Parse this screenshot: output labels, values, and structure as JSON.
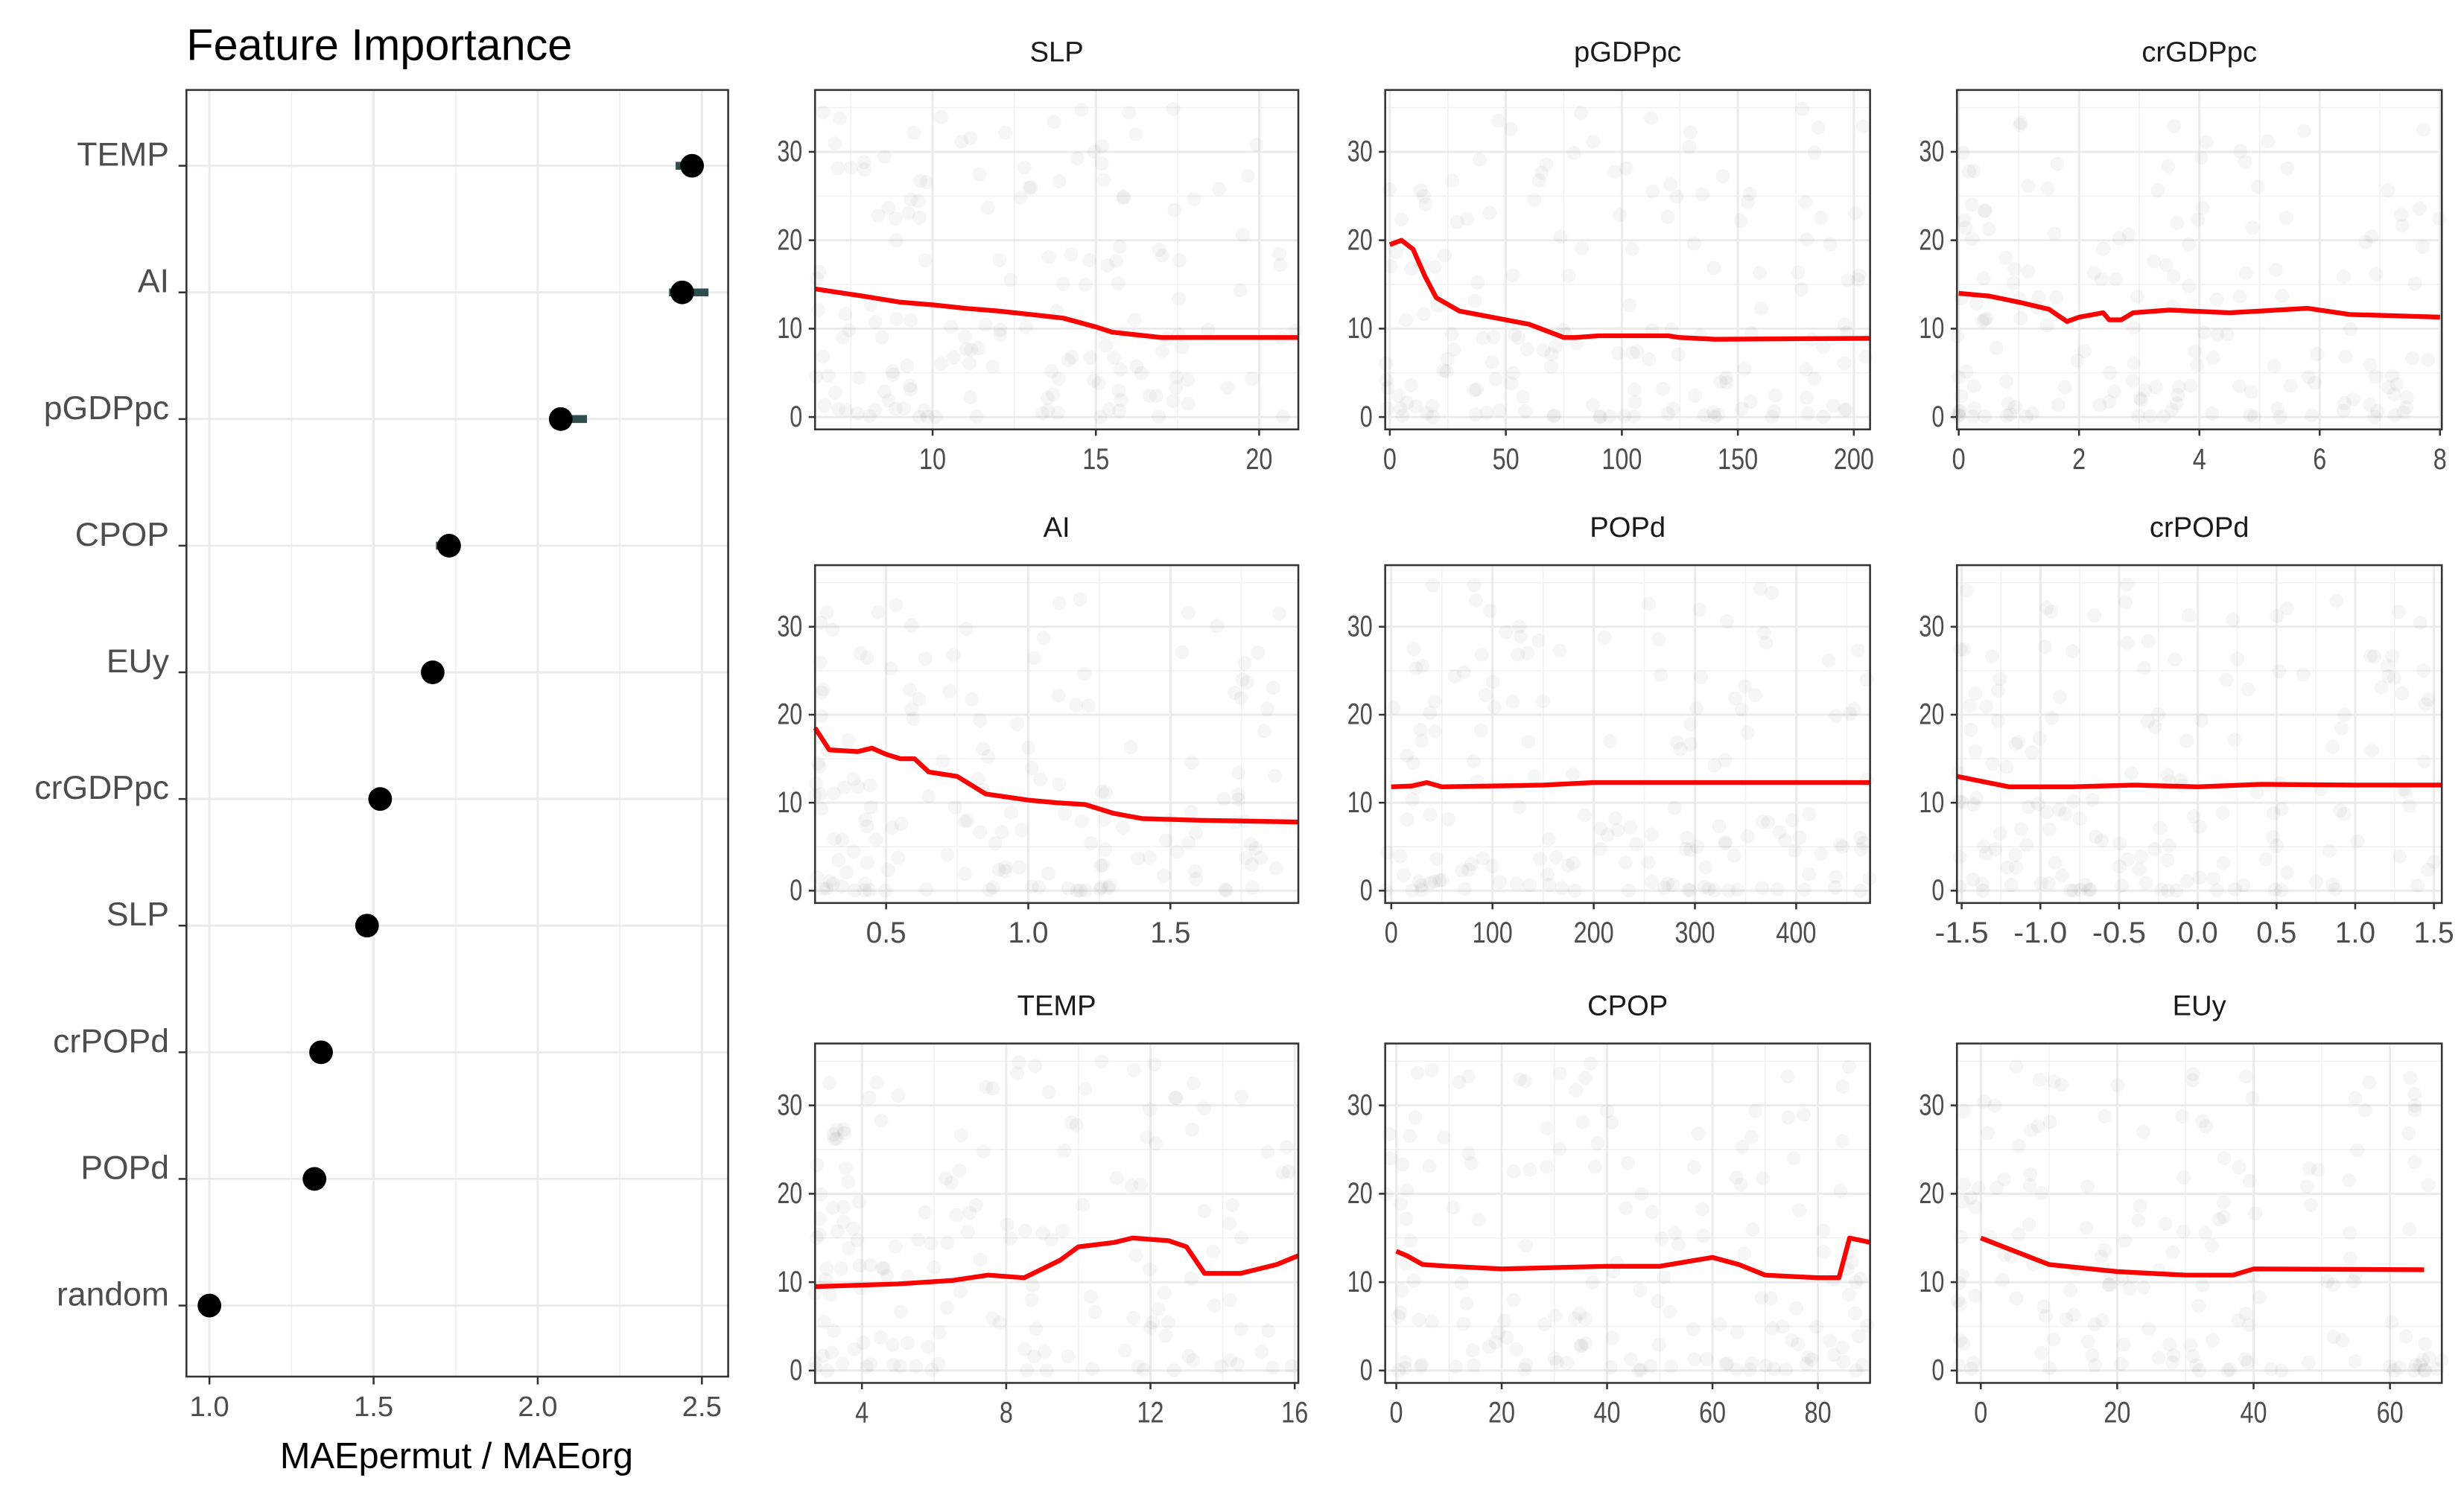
{
  "chart_data": [
    {
      "type": "dot",
      "title": "Feature Importance",
      "xlabel": "MAEpermut / MAEorg",
      "ylabel": "",
      "xlim": [
        0.93,
        2.58
      ],
      "xticks": [
        "1.0",
        "1.5",
        "2.0",
        "2.5"
      ],
      "xtick_values": [
        1.0,
        1.5,
        2.0,
        2.5
      ],
      "grid": true,
      "categories": [
        "TEMP",
        "AI",
        "pGDPpc",
        "CPOP",
        "EUy",
        "crGDPpc",
        "SLP",
        "crPOPd",
        "POPd",
        "random"
      ],
      "values": [
        2.47,
        2.44,
        2.07,
        1.73,
        1.68,
        1.52,
        1.48,
        1.34,
        1.32,
        1.0
      ],
      "lower": [
        2.42,
        2.4,
        2.05,
        1.69,
        1.67,
        1.51,
        1.47,
        1.33,
        1.31,
        1.0
      ],
      "upper": [
        2.48,
        2.52,
        2.15,
        1.75,
        1.69,
        1.53,
        1.49,
        1.35,
        1.33,
        1.0
      ],
      "colors": {
        "point": "#000000",
        "errorbar": "#2f4f4f"
      }
    },
    {
      "type": "line",
      "subtype": "partial-dependence-grid",
      "ylim": [
        -1.4,
        37
      ],
      "yticks": [
        "0",
        "10",
        "20",
        "30"
      ],
      "ytick_values": [
        0,
        10,
        20,
        30
      ],
      "colors": {
        "line": "#ff0000",
        "points": "#000000"
      },
      "panels": [
        {
          "title": "SLP",
          "xlim": [
            6.4,
            21.2
          ],
          "xticks": [
            10,
            15,
            20
          ],
          "x": [
            6.4,
            8,
            9,
            10,
            11,
            12,
            13,
            14,
            15,
            15.5,
            17,
            21.2
          ],
          "y": [
            14.5,
            13.6,
            13,
            12.7,
            12.3,
            12,
            11.6,
            11.2,
            10.2,
            9.6,
            9,
            9
          ]
        },
        {
          "title": "pGDPpc",
          "xlim": [
            -2,
            207
          ],
          "xticks": [
            0,
            50,
            100,
            150,
            200
          ],
          "x": [
            0,
            5,
            10,
            15,
            20,
            30,
            50,
            60,
            70,
            75,
            80,
            90,
            120,
            125,
            140,
            207
          ],
          "y": [
            19.5,
            20,
            19,
            16,
            13.5,
            12,
            11,
            10.5,
            9.5,
            9,
            9,
            9.2,
            9.2,
            9,
            8.8,
            8.9
          ]
        },
        {
          "title": "crGDPpc",
          "xlim": [
            -0.03,
            8.03
          ],
          "xticks": [
            0,
            2,
            4,
            6,
            8
          ],
          "x": [
            0,
            0.5,
            1,
            1.5,
            1.8,
            2,
            2.4,
            2.5,
            2.7,
            2.9,
            3.5,
            4.5,
            5.8,
            6.5,
            8
          ],
          "y": [
            14,
            13.7,
            13,
            12.2,
            10.8,
            11.3,
            11.8,
            11,
            11,
            11.8,
            12.1,
            11.8,
            12.3,
            11.6,
            11.3
          ]
        },
        {
          "title": "AI",
          "xlim": [
            0.25,
            1.95
          ],
          "xticks": [
            0.5,
            1.0,
            1.5
          ],
          "xtick_labels": [
            "0.5",
            "1.0",
            "1.5"
          ],
          "x": [
            0.25,
            0.3,
            0.4,
            0.45,
            0.5,
            0.55,
            0.6,
            0.65,
            0.75,
            0.85,
            1.0,
            1.1,
            1.2,
            1.3,
            1.4,
            1.6,
            1.95
          ],
          "y": [
            18.5,
            16,
            15.8,
            16.2,
            15.5,
            15,
            15,
            13.5,
            13,
            11,
            10.3,
            10,
            9.8,
            8.8,
            8.2,
            8,
            7.8
          ]
        },
        {
          "title": "POPd",
          "xlim": [
            -6,
            473
          ],
          "xticks": [
            0,
            100,
            200,
            300,
            400
          ],
          "x": [
            0,
            20,
            35,
            50,
            100,
            150,
            200,
            473
          ],
          "y": [
            11.8,
            11.9,
            12.3,
            11.8,
            11.9,
            12,
            12.3,
            12.3
          ]
        },
        {
          "title": "crPOPd",
          "xlim": [
            -1.53,
            1.55
          ],
          "xticks": [
            -1.5,
            -1.0,
            -0.5,
            0.0,
            0.5,
            1.0,
            1.5
          ],
          "xtick_labels": [
            "-1.5",
            "-1.0",
            "-0.5",
            "0.0",
            "0.5",
            "1.0",
            "1.5"
          ],
          "x": [
            -1.53,
            -1.2,
            -0.8,
            -0.4,
            0,
            0.4,
            1.0,
            1.55
          ],
          "y": [
            13,
            11.8,
            11.8,
            12,
            11.8,
            12.1,
            12,
            12
          ]
        },
        {
          "title": "TEMP",
          "xlim": [
            2.7,
            16.1
          ],
          "xticks": [
            4,
            8,
            12,
            16
          ],
          "x": [
            2.7,
            5,
            6.5,
            7.5,
            8.5,
            9,
            9.5,
            10,
            11,
            11.5,
            12.5,
            13,
            13.5,
            14.5,
            15.5,
            16.1
          ],
          "y": [
            9.5,
            9.8,
            10.2,
            10.8,
            10.5,
            11.5,
            12.5,
            14,
            14.5,
            15,
            14.7,
            14,
            11,
            11,
            12,
            13
          ]
        },
        {
          "title": "CPOP",
          "xlim": [
            -2.1,
            89.9
          ],
          "xticks": [
            0,
            20,
            40,
            60,
            80
          ],
          "x": [
            0,
            2,
            5,
            10,
            20,
            40,
            50,
            60,
            65,
            70,
            80,
            84,
            86,
            90
          ],
          "y": [
            13.5,
            13,
            12,
            11.8,
            11.5,
            11.8,
            11.8,
            12.8,
            12,
            10.8,
            10.5,
            10.5,
            15,
            14.5
          ]
        },
        {
          "title": "EUy",
          "xlim": [
            -3.5,
            67.6
          ],
          "xticks": [
            0,
            20,
            40,
            60
          ],
          "x": [
            0,
            10,
            20,
            30,
            37,
            40,
            65
          ],
          "y": [
            15,
            12,
            11.2,
            10.8,
            10.8,
            11.5,
            11.4
          ]
        }
      ]
    }
  ]
}
